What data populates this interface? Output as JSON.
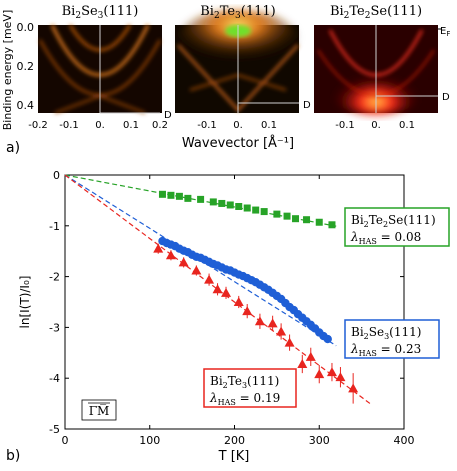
{
  "panel_a": {
    "label": "a)",
    "ylabel": "Binding energy [meV]",
    "xlabel": "Wavevector [Å⁻¹]",
    "ef_label": "E",
    "ef_sub": "F",
    "d_label": "D",
    "yticks": [
      "0.0",
      "0.2",
      "0.4"
    ],
    "xticks": [
      "-0.2",
      "-0.1",
      "0.",
      "0.1",
      "0.2"
    ],
    "titles": [
      {
        "main": "Bi",
        "s1": "2",
        "mid": "Se",
        "s2": "3",
        "tail": "(111)"
      },
      {
        "main": "Bi",
        "s1": "2",
        "mid": "Te",
        "s2": "3",
        "tail": "(111)"
      },
      {
        "main": "Bi",
        "s1": "2",
        "mid": "Te",
        "s2": "2",
        "tail": "Se(111)"
      }
    ],
    "colors": {
      "se3": "#e07a1c",
      "te3": "#e8821a",
      "te2se": "#ff2a1a"
    }
  },
  "panel_b": {
    "label": "b)",
    "inset_label": "Γ̅M̅",
    "annotations": [
      {
        "name": "Bi2Te2Se(111)",
        "line1_parts": [
          "Bi",
          "2",
          "Te",
          "2",
          "Se(111)"
        ],
        "lambda": "λ",
        "sub": "HAS",
        "value": " = 0.08",
        "color": "#27a327"
      },
      {
        "name": "Bi2Se3(111)",
        "line1_parts": [
          "Bi",
          "2",
          "Se",
          "3",
          "(111)"
        ],
        "lambda": "λ",
        "sub": "HAS",
        "value": " = 0.23",
        "color": "#1f5fd6"
      },
      {
        "name": "Bi2Te3(111)",
        "line1_parts": [
          "Bi",
          "2",
          "Te",
          "3",
          "(111)"
        ],
        "lambda": "λ",
        "sub": "HAS",
        "value": " = 0.19",
        "color": "#e8251f"
      }
    ]
  },
  "chart_data": {
    "type": "scatter",
    "title": "",
    "xlabel": "T [K]",
    "ylabel": "ln[I(T)/I₀]",
    "xlim": [
      0,
      400
    ],
    "ylim": [
      -5,
      0
    ],
    "xticks": [
      0,
      100,
      200,
      300,
      400
    ],
    "yticks": [
      0,
      -1,
      -2,
      -3,
      -4,
      -5
    ],
    "grid": false,
    "series": [
      {
        "name": "Bi2Te2Se(111)",
        "color": "#27a327",
        "marker": "square",
        "fit_slope": -0.00315,
        "x": [
          115,
          125,
          135,
          145,
          160,
          175,
          185,
          195,
          205,
          215,
          225,
          235,
          250,
          262,
          272,
          285,
          300,
          315
        ],
        "y": [
          -0.38,
          -0.4,
          -0.42,
          -0.46,
          -0.48,
          -0.53,
          -0.56,
          -0.59,
          -0.62,
          -0.65,
          -0.69,
          -0.72,
          -0.77,
          -0.81,
          -0.86,
          -0.88,
          -0.93,
          -0.98
        ]
      },
      {
        "name": "Bi2Se3(111)",
        "color": "#1f5fd6",
        "marker": "circle",
        "fit_slope": -0.0105,
        "x": [
          115,
          120,
          125,
          130,
          135,
          140,
          145,
          150,
          155,
          160,
          165,
          170,
          175,
          180,
          185,
          190,
          195,
          200,
          205,
          210,
          215,
          220,
          225,
          230,
          235,
          240,
          245,
          250,
          255,
          260,
          265,
          270,
          275,
          280,
          285,
          290,
          295,
          300,
          305,
          310
        ],
        "y": [
          -1.3,
          -1.34,
          -1.37,
          -1.4,
          -1.45,
          -1.49,
          -1.52,
          -1.57,
          -1.61,
          -1.63,
          -1.67,
          -1.71,
          -1.75,
          -1.78,
          -1.82,
          -1.86,
          -1.88,
          -1.92,
          -1.96,
          -1.99,
          -2.03,
          -2.07,
          -2.11,
          -2.16,
          -2.21,
          -2.26,
          -2.32,
          -2.38,
          -2.44,
          -2.52,
          -2.6,
          -2.66,
          -2.74,
          -2.81,
          -2.88,
          -2.95,
          -3.02,
          -3.1,
          -3.17,
          -3.23
        ]
      },
      {
        "name": "Bi2Te3(111)",
        "color": "#e8251f",
        "marker": "triangle",
        "fit_slope": -0.0125,
        "x": [
          110,
          125,
          140,
          155,
          170,
          180,
          190,
          205,
          215,
          230,
          245,
          255,
          265,
          280,
          290,
          300,
          315,
          325,
          340
        ],
        "y": [
          -1.45,
          -1.58,
          -1.72,
          -1.88,
          -2.06,
          -2.25,
          -2.32,
          -2.5,
          -2.68,
          -2.88,
          -2.92,
          -3.08,
          -3.3,
          -3.72,
          -3.58,
          -3.92,
          -3.88,
          -3.98,
          -4.2
        ],
        "err": [
          0.1,
          0.1,
          0.1,
          0.1,
          0.12,
          0.12,
          0.12,
          0.12,
          0.14,
          0.15,
          0.15,
          0.16,
          0.16,
          0.18,
          0.18,
          0.18,
          0.18,
          0.2,
          0.3
        ]
      }
    ]
  }
}
